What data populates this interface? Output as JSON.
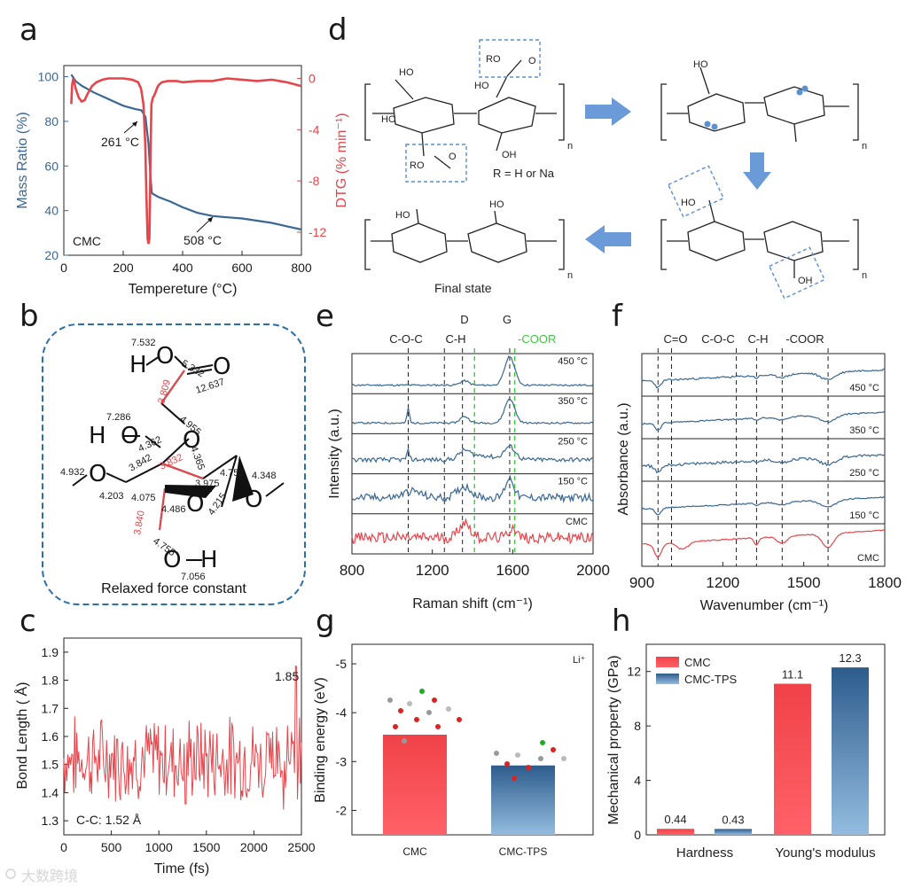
{
  "panels": {
    "a": "a",
    "b": "b",
    "c": "c",
    "d": "d",
    "e": "e",
    "f": "f",
    "g": "g",
    "h": "h"
  },
  "watermark": "大数跨境",
  "colors": {
    "blue": "#3a6793",
    "red": "#e5454b",
    "navy": "#2e5f8a",
    "green": "#3ec93e",
    "dash_box": "#5a8fd0"
  },
  "chart_data": [
    {
      "id": "a",
      "type": "line",
      "xlabel": "Tempereture (°C)",
      "ylabel": "Mass Ratio (%)",
      "y2label": "DTG (% min⁻¹)",
      "xlim": [
        0,
        800
      ],
      "ylim": [
        20,
        105
      ],
      "y2lim": [
        -13.8,
        1
      ],
      "xticks": [
        "0",
        "200",
        "400",
        "600",
        "800"
      ],
      "yticks": [
        "20",
        "40",
        "60",
        "80",
        "100"
      ],
      "y2ticks": [
        "0",
        "-4",
        "-8",
        "-12"
      ],
      "annotations": [
        "261 °C",
        "508 °C",
        "CMC"
      ],
      "series": [
        {
          "name": "Mass Ratio",
          "axis": "left",
          "x": [
            25,
            40,
            60,
            100,
            150,
            200,
            240,
            261,
            275,
            285,
            292,
            296,
            300,
            320,
            360,
            400,
            450,
            500,
            550,
            600,
            650,
            700,
            750,
            800
          ],
          "y": [
            101,
            98,
            96,
            93,
            90,
            87,
            85.5,
            85,
            82,
            70,
            55,
            48,
            47.5,
            46,
            44,
            41.5,
            39,
            37.6,
            37,
            36.5,
            35.5,
            34.5,
            33,
            31.5
          ]
        },
        {
          "name": "DTG",
          "axis": "right",
          "x": [
            25,
            28,
            32,
            40,
            50,
            60,
            70,
            80,
            95,
            110,
            130,
            150,
            170,
            200,
            230,
            250,
            260,
            268,
            274,
            278,
            282,
            285,
            288,
            290,
            292,
            295,
            300,
            305,
            310,
            315,
            320,
            330,
            350,
            380,
            400,
            450,
            500,
            550,
            600,
            650,
            700,
            750,
            800
          ],
          "y": [
            -2,
            -0.5,
            0,
            -0.8,
            -1.5,
            -1.8,
            -1.7,
            -1.2,
            -0.6,
            -0.3,
            -0.1,
            0,
            0,
            0,
            -0.1,
            -0.3,
            -0.8,
            -2,
            -5,
            -9,
            -12.5,
            -12.9,
            -12.5,
            -10,
            -6,
            -2,
            -1.5,
            -1.3,
            -1,
            -0.7,
            -0.5,
            -0.3,
            -0.2,
            -0.2,
            -0.3,
            -0.2,
            -0.2,
            0,
            -0.1,
            -0.2,
            -0.1,
            -0.3,
            -0.6
          ]
        }
      ]
    },
    {
      "id": "c",
      "type": "line",
      "xlabel": "Time (fs)",
      "ylabel": "Bond Length ( Å)",
      "xlim": [
        0,
        2500
      ],
      "ylim": [
        1.25,
        1.95
      ],
      "xticks": [
        "0",
        "500",
        "1000",
        "1500",
        "2000",
        "2500"
      ],
      "yticks": [
        "1.3",
        "1.4",
        "1.5",
        "1.6",
        "1.7",
        "1.8",
        "1.9"
      ],
      "annotations": [
        "1.85",
        "C-C: 1.52  Å"
      ],
      "mean": 1.52,
      "max": 1.85,
      "min": 1.36,
      "n_points": 240
    },
    {
      "id": "e",
      "type": "line",
      "xlabel": "Raman shift (cm⁻¹)",
      "ylabel": "Intensity (a.u.)",
      "xlim": [
        800,
        2000
      ],
      "xticks": [
        "800",
        "1200",
        "1600",
        "2000"
      ],
      "peak_labels": [
        "C-O-C",
        "C-H",
        "D",
        "G",
        "-COOR"
      ],
      "peak_positions": [
        1080,
        1260,
        1350,
        1585
      ],
      "green_lines": [
        1410,
        1610
      ],
      "series": [
        {
          "name": "450 °C"
        },
        {
          "name": "350 °C"
        },
        {
          "name": "250 °C"
        },
        {
          "name": "150 °C"
        },
        {
          "name": "CMC"
        }
      ]
    },
    {
      "id": "f",
      "type": "line",
      "xlabel": "Wavenumber (cm⁻¹)",
      "ylabel": "Absorbance (a.u.)",
      "xlim": [
        900,
        1800
      ],
      "xticks": [
        "900",
        "1200",
        "1500",
        "1800"
      ],
      "peak_labels": [
        "C=O",
        "C-O-C",
        "C-H",
        "-COOR"
      ],
      "peak_positions": [
        960,
        1010,
        1250,
        1325,
        1420,
        1590
      ],
      "series": [
        {
          "name": "450 °C"
        },
        {
          "name": "350 °C"
        },
        {
          "name": "250 °C"
        },
        {
          "name": "150 °C"
        },
        {
          "name": "CMC"
        }
      ]
    },
    {
      "id": "g",
      "type": "bar",
      "ylabel": "Binding energy (eV)",
      "inset": "Li⁺",
      "ylim": [
        -1.5,
        -5.4
      ],
      "yticks": [
        "-2",
        "-3",
        "-4",
        "-5"
      ],
      "categories": [
        "CMC",
        "CMC-TPS"
      ],
      "values": [
        -3.55,
        -2.92
      ]
    },
    {
      "id": "h",
      "type": "bar",
      "ylabel": "Mechanical property (GPa)",
      "ylim": [
        0,
        14
      ],
      "yticks": [
        "0",
        "4",
        "8",
        "12"
      ],
      "categories": [
        "Hardness",
        "Young's modulus"
      ],
      "series": [
        {
          "name": "CMC",
          "values": [
            0.44,
            11.1
          ]
        },
        {
          "name": "CMC-TPS",
          "values": [
            0.43,
            12.3
          ]
        }
      ],
      "data_labels": [
        "0.44",
        "0.43",
        "11.1",
        "12.3"
      ]
    }
  ],
  "panel_b": {
    "caption": "Relaxed force constant",
    "atoms": [
      "H",
      "O",
      "O",
      "H",
      "O",
      "O",
      "O",
      "O",
      "H"
    ],
    "numbers_black": [
      "7.532",
      "5.332",
      "12.637",
      "4.955",
      "7.286",
      "4.362",
      "4.365",
      "4.932",
      "3.842",
      "4.753",
      "4.348",
      "3.975",
      "4.203",
      "4.075",
      "4.486",
      "4.215",
      "4.755",
      "7.056"
    ],
    "numbers_red": [
      "3.809",
      "3.832",
      "3.840"
    ]
  },
  "panel_d": {
    "r_label": "R = H or Na",
    "final_state": "Final state",
    "n_label": "n",
    "groups": [
      "HO",
      "OH",
      "RO",
      "O"
    ]
  }
}
